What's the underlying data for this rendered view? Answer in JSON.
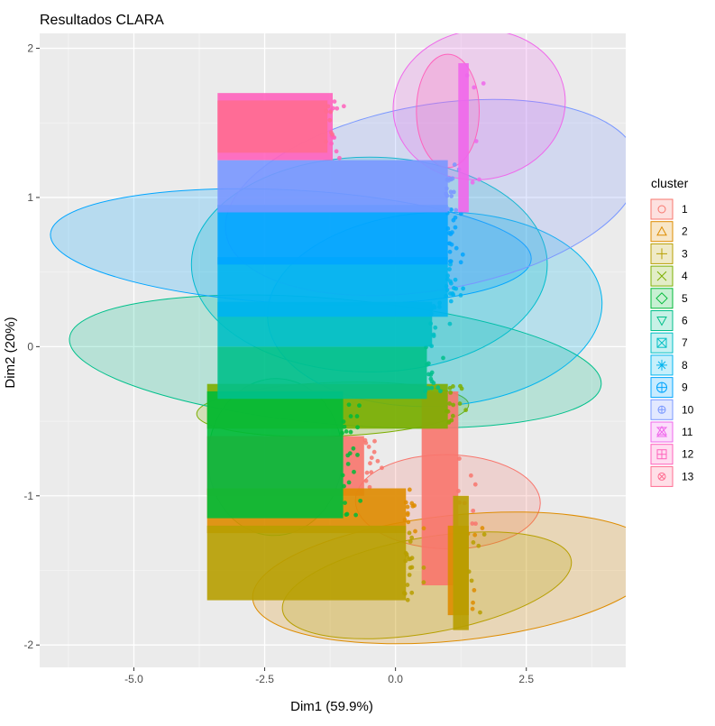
{
  "chart_data": {
    "type": "scatter",
    "title": "Resultados CLARA",
    "xlabel": "Dim1 (59.9%)",
    "ylabel": "Dim2 (20%)",
    "xlim": [
      -6.8,
      4.4
    ],
    "ylim": [
      -2.15,
      2.1
    ],
    "x_ticks": [
      -5.0,
      -2.5,
      0.0,
      2.5
    ],
    "x_tick_labels": [
      "-5.0",
      "-2.5",
      "0.0",
      "2.5"
    ],
    "y_ticks": [
      -2,
      -1,
      0,
      1,
      2
    ],
    "y_tick_labels": [
      "-2",
      "-1",
      "0",
      "1",
      "2"
    ],
    "grid": true,
    "background": "#ebebeb",
    "legend": {
      "title": "cluster",
      "placement": "right",
      "entries": [
        "1",
        "2",
        "3",
        "4",
        "5",
        "6",
        "7",
        "8",
        "9",
        "10",
        "11",
        "12",
        "13"
      ]
    },
    "series": [
      {
        "name": "1",
        "color": "#f8766d",
        "symbol": "circle",
        "bands": [
          {
            "x": [
              -3.6,
              -0.6
            ],
            "y": [
              -1.0,
              -0.6
            ]
          },
          {
            "x": [
              0.5,
              1.2
            ],
            "y": [
              -1.6,
              -0.3
            ]
          }
        ],
        "ellipse": {
          "cx": 1.0,
          "cy": -1.04,
          "rx": 0.9,
          "ry": 0.62,
          "angle": -89
        }
      },
      {
        "name": "2",
        "color": "#de8c00",
        "symbol": "triangle",
        "bands": [
          {
            "x": [
              -3.6,
              0.2
            ],
            "y": [
              -1.25,
              -0.95
            ]
          },
          {
            "x": [
              1.0,
              1.4
            ],
            "y": [
              -1.8,
              -1.2
            ]
          }
        ],
        "ellipse": {
          "cx": 1.15,
          "cy": -1.55,
          "rx": 3.9,
          "ry": 0.42,
          "angle": -6
        }
      },
      {
        "name": "3",
        "color": "#b79f00",
        "symbol": "plus",
        "bands": [
          {
            "x": [
              -3.6,
              0.2
            ],
            "y": [
              -1.7,
              -1.2
            ]
          },
          {
            "x": [
              1.1,
              1.4
            ],
            "y": [
              -1.9,
              -1.0
            ]
          }
        ],
        "ellipse": {
          "cx": 0.6,
          "cy": -1.6,
          "rx": 2.8,
          "ry": 0.32,
          "angle": -10
        }
      },
      {
        "name": "4",
        "color": "#7cae00",
        "symbol": "cross",
        "bands": [
          {
            "x": [
              -3.6,
              1.0
            ],
            "y": [
              -0.55,
              -0.25
            ]
          }
        ],
        "ellipse": {
          "cx": -1.2,
          "cy": -0.42,
          "rx": 2.6,
          "ry": 0.18,
          "angle": -2
        }
      },
      {
        "name": "5",
        "color": "#00ba38",
        "symbol": "diamond",
        "bands": [
          {
            "x": [
              -3.6,
              -1.0
            ],
            "y": [
              -1.15,
              -0.3
            ]
          }
        ],
        "ellipse": {
          "cx": -2.3,
          "cy": -0.74,
          "rx": 1.5,
          "ry": 0.45,
          "angle": 93
        }
      },
      {
        "name": "6",
        "color": "#00c08b",
        "symbol": "triangle-down",
        "bands": [
          {
            "x": [
              -3.4,
              0.6
            ],
            "y": [
              -0.35,
              0.0
            ]
          }
        ],
        "ellipse": {
          "cx": -1.15,
          "cy": -0.1,
          "rx": 5.1,
          "ry": 0.42,
          "angle": 5
        }
      },
      {
        "name": "7",
        "color": "#00bfc4",
        "symbol": "square-cross",
        "bands": [
          {
            "x": [
              -3.4,
              0.7
            ],
            "y": [
              0.0,
              0.3
            ]
          }
        ],
        "ellipse": {
          "cx": -0.5,
          "cy": 0.55,
          "rx": 3.4,
          "ry": 0.72,
          "angle": 0
        }
      },
      {
        "name": "8",
        "color": "#00b4ef",
        "symbol": "asterisk",
        "bands": [
          {
            "x": [
              -3.4,
              1.0
            ],
            "y": [
              0.2,
              0.6
            ]
          }
        ],
        "ellipse": {
          "cx": 0.75,
          "cy": 0.25,
          "rx": 3.2,
          "ry": 0.65,
          "angle": -3
        }
      },
      {
        "name": "9",
        "color": "#00a5ff",
        "symbol": "circle-plus",
        "bands": [
          {
            "x": [
              -3.4,
              1.0
            ],
            "y": [
              0.55,
              0.95
            ]
          }
        ],
        "ellipse": {
          "cx": -2.0,
          "cy": 0.67,
          "rx": 4.6,
          "ry": 0.38,
          "angle": 3
        }
      },
      {
        "name": "10",
        "color": "#7997ff",
        "symbol": "circle-cross",
        "bands": [
          {
            "x": [
              -3.4,
              1.0
            ],
            "y": [
              0.9,
              1.25
            ]
          }
        ],
        "ellipse": {
          "cx": 0.7,
          "cy": 1.0,
          "rx": 4.0,
          "ry": 0.62,
          "angle": -10
        }
      },
      {
        "name": "11",
        "color": "#ef67eb",
        "symbol": "hourglass",
        "bands": [
          {
            "x": [
              1.2,
              1.4
            ],
            "y": [
              0.9,
              1.9
            ]
          }
        ],
        "ellipse": {
          "cx": 1.6,
          "cy": 1.62,
          "rx": 1.65,
          "ry": 0.5,
          "angle": -9
        }
      },
      {
        "name": "12",
        "color": "#ff62bc",
        "symbol": "square-plus",
        "bands": [
          {
            "x": [
              -3.4,
              -1.2
            ],
            "y": [
              1.25,
              1.7
            ]
          }
        ],
        "ellipse": {
          "cx": 1.0,
          "cy": 1.58,
          "rx": 0.6,
          "ry": 0.38,
          "angle": 0
        }
      },
      {
        "name": "13",
        "color": "#ff6c91",
        "symbol": "circle-x",
        "bands": [
          {
            "x": [
              -3.4,
              -1.3
            ],
            "y": [
              1.3,
              1.65
            ]
          }
        ]
      }
    ]
  }
}
